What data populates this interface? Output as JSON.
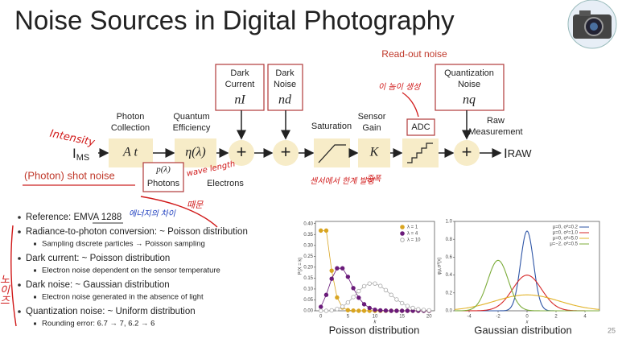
{
  "title": "Noise Sources in Digital Photography",
  "page_number": "25",
  "diagram": {
    "readout_label": "Read-out noise",
    "input": {
      "symbol": "I",
      "subscript": "MS"
    },
    "output": {
      "symbol": "I",
      "subscript": "RAW"
    },
    "plus": "+",
    "photon_collection": {
      "label": [
        "Photon",
        "Collection"
      ],
      "symbol": "A t"
    },
    "quantum_efficiency": {
      "label": [
        "Quantum",
        "Efficiency"
      ],
      "symbol": "η(λ)"
    },
    "photons": {
      "symbol": "p(λ)",
      "label": "Photons"
    },
    "electrons": "Electrons",
    "dark_current": {
      "label": [
        "Dark",
        "Current"
      ],
      "symbol": "nI"
    },
    "dark_noise": {
      "label": [
        "Dark",
        "Noise"
      ],
      "symbol": "nd"
    },
    "saturation": "Saturation",
    "sensor_gain": {
      "label": [
        "Sensor",
        "Gain"
      ],
      "symbol": "K"
    },
    "adc": "ADC",
    "quantization_noise": {
      "label": [
        "Quantization",
        "Noise"
      ],
      "symbol": "nq"
    },
    "raw_measurement": [
      "Raw",
      "Measurement"
    ],
    "shot_noise": "(Photon) shot noise"
  },
  "notes": [
    "Intensity",
    "이 놈이 생성",
    "센서에서 한계 발생",
    "증폭",
    "wave length",
    "때문",
    "에너지의 차이",
    "노이즈"
  ],
  "bullets": [
    {
      "text": "Reference: EMVA 1288",
      "sub": []
    },
    {
      "text": "Radiance-to-photon conversion: ~ Poisson distribution",
      "sub": [
        "Sampling discrete particles → Poisson sampling"
      ]
    },
    {
      "text": "Dark current: ~ Poisson distribution",
      "sub": [
        "Electron noise dependent on the sensor temperature"
      ]
    },
    {
      "text": "Dark noise: ~ Gaussian distribution",
      "sub": [
        "Electron noise generated in the absence of light"
      ]
    },
    {
      "text": "Quantization noise: ~ Uniform distribution",
      "sub": [
        "Rounding error: 6.7 → 7, 6.2 → 6"
      ]
    }
  ],
  "poisson": {
    "caption": "Poisson distribution",
    "x_label": "k",
    "y_label": "P(X = k)",
    "xlim": [
      -1,
      21
    ],
    "ylim": [
      0,
      0.41
    ],
    "xticks": [
      0,
      5,
      10,
      15,
      20
    ],
    "yticks": [
      {
        "value": 0,
        "label": "0.00"
      },
      0.05,
      {
        "value": 0.1,
        "label": "0.10"
      },
      0.15,
      {
        "value": 0.2,
        "label": "0.20"
      },
      0.25,
      {
        "value": 0.3,
        "label": "0.30"
      },
      0.35,
      {
        "value": 0.4,
        "label": "0.40"
      }
    ],
    "k": [
      0,
      1,
      2,
      3,
      4,
      5,
      6,
      7,
      8,
      9,
      10,
      11,
      12,
      13,
      14,
      15,
      16,
      17,
      18,
      19,
      20
    ],
    "series": [
      {
        "name": "λ = 1",
        "color": "#d9a521",
        "values": [
          0.368,
          0.368,
          0.184,
          0.061,
          0.015,
          0.003,
          0.001,
          0,
          0,
          0,
          0,
          0,
          0,
          0,
          0,
          0,
          0,
          0,
          0,
          0,
          0
        ]
      },
      {
        "name": "λ = 4",
        "color": "#6a1b7a",
        "values": [
          0.018,
          0.073,
          0.147,
          0.195,
          0.195,
          0.156,
          0.104,
          0.06,
          0.03,
          0.013,
          0.005,
          0.002,
          0.001,
          0,
          0,
          0,
          0,
          0,
          0,
          0,
          0
        ]
      },
      {
        "name": "λ = 10",
        "color": "#aaaaaa",
        "values": [
          0,
          0,
          0.002,
          0.008,
          0.019,
          0.038,
          0.063,
          0.09,
          0.113,
          0.125,
          0.125,
          0.114,
          0.095,
          0.073,
          0.052,
          0.035,
          0.022,
          0.013,
          0.007,
          0.004,
          0.002
        ]
      }
    ]
  },
  "gaussian": {
    "caption": "Gaussian distribution",
    "x_label": "x",
    "y_label": "φμ,σ²(x)",
    "xlim": [
      -5,
      5
    ],
    "ylim": [
      0,
      1
    ],
    "xticks": [
      -4,
      -2,
      0,
      2,
      4
    ],
    "yticks": [
      {
        "value": 0,
        "label": "0.0"
      },
      0.2,
      0.4,
      0.6,
      0.8,
      {
        "value": 1,
        "label": "1.0"
      }
    ],
    "series": [
      {
        "name": "μ=0, σ²=0.2",
        "color": "#2e55a6",
        "mu": 0,
        "sigma2": 0.2
      },
      {
        "name": "μ=0, σ²=1.0",
        "color": "#d62728",
        "mu": 0,
        "sigma2": 1
      },
      {
        "name": "μ=0, σ²=5.0",
        "color": "#e2b42a",
        "mu": 0,
        "sigma2": 5
      },
      {
        "name": "μ=−2, σ²=0.5",
        "color": "#7cac3a",
        "mu": -2,
        "sigma2": 0.5
      }
    ]
  }
}
